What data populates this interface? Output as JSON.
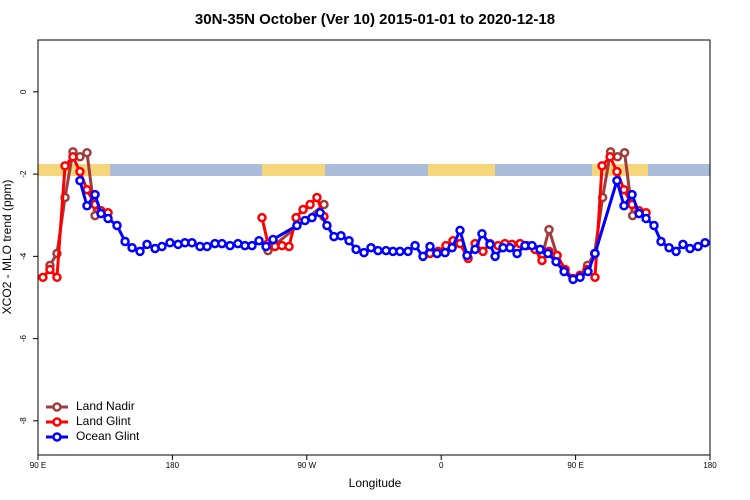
{
  "chart_data": {
    "type": "line",
    "title": "30N-35N October (Ver 10)   2015-01-01 to 2020-12-18",
    "xlabel": "Longitude",
    "ylabel": "XCO2 - MLO trend (ppm)",
    "xlim": [
      90,
      540
    ],
    "ylim": [
      -8.83,
      1.26
    ],
    "xticks": [
      {
        "value": 90,
        "label": "90 E"
      },
      {
        "value": 180,
        "label": "180"
      },
      {
        "value": 270,
        "label": "90 W"
      },
      {
        "value": 360,
        "label": "0"
      },
      {
        "value": 450,
        "label": "90 E"
      },
      {
        "value": 540,
        "label": "180"
      }
    ],
    "yticks": [
      0,
      -2,
      -4,
      -6,
      -8
    ],
    "legend": "bottom-left",
    "series": [
      {
        "name": "Land Nadir",
        "color": "#a03c3c",
        "x": [
          98.0,
          102.7,
          108.1,
          113.4,
          118.1,
          122.8,
          128.2,
          190,
          244.0,
          281.5,
          350,
          427.5,
          432.2,
          437.6,
          445,
          458.0,
          462.7,
          468.1,
          473.4,
          478.1,
          482.8,
          488.2
        ],
        "values": [
          -4.22,
          -3.93,
          -2.57,
          -1.46,
          -1.58,
          -1.48,
          -3.01,
          null,
          -3.86,
          -2.74,
          null,
          -4.0,
          -3.35,
          -3.98,
          null,
          -4.22,
          -3.93,
          -2.57,
          -1.46,
          -1.58,
          -1.48,
          -3.01
        ]
      },
      {
        "name": "Land Glint",
        "color": "#ff0000",
        "x": [
          93.3,
          98.0,
          102.7,
          108.1,
          113.4,
          118.1,
          122.8,
          128.2,
          132.2,
          136.9,
          190,
          240.0,
          244.0,
          248.7,
          253.4,
          258.1,
          262.8,
          267.5,
          272.2,
          276.8,
          281.5,
          320,
          352.5,
          357.9,
          363.2,
          367.9,
          372.6,
          378.0,
          382.7,
          388.0,
          392.7,
          398.1,
          402.7,
          407.4,
          412.8,
          417.5,
          422.8,
          427.5,
          432.2,
          437.6,
          443.0,
          448.3,
          453.0,
          457.6,
          463.0,
          467.7,
          473.1,
          477.7,
          482.4,
          487.8,
          492.5,
          497.2
        ],
        "values": [
          -4.51,
          -4.32,
          -4.51,
          -1.8,
          -1.58,
          -1.94,
          -2.38,
          -2.74,
          -2.89,
          -2.94,
          null,
          -3.06,
          -3.69,
          -3.76,
          -3.74,
          -3.76,
          -3.06,
          -2.86,
          -2.74,
          -2.57,
          -3.03,
          null,
          -3.93,
          -3.88,
          -3.74,
          -3.62,
          -3.69,
          -4.05,
          -3.69,
          -3.88,
          -3.69,
          -3.74,
          -3.69,
          -3.71,
          -3.69,
          -3.74,
          -3.83,
          -4.1,
          -3.88,
          -3.98,
          -4.32,
          -4.54,
          -4.46,
          -4.32,
          -4.51,
          -1.8,
          -1.58,
          -1.94,
          -2.38,
          -2.74,
          -2.89,
          -2.94
        ]
      },
      {
        "name": "Ocean Glint",
        "color": "#0000ff",
        "x": [
          118.1,
          122.8,
          128.2,
          132.2,
          136.9,
          142.9,
          148.3,
          153.0,
          158.3,
          163.0,
          168.4,
          173.0,
          178.4,
          183.8,
          188.4,
          193.1,
          198.5,
          203.2,
          208.5,
          213.2,
          218.6,
          223.9,
          228.6,
          233.3,
          238.0,
          242.7,
          247.4,
          263.4,
          268.8,
          273.5,
          278.9,
          283.5,
          288.2,
          292.9,
          298.3,
          303.0,
          308.3,
          313.0,
          317.7,
          323.1,
          327.7,
          332.4,
          337.8,
          342.5,
          347.8,
          352.5,
          357.2,
          362.6,
          367.3,
          372.6,
          377.3,
          382.7,
          387.3,
          392.7,
          396.1,
          401.4,
          406.1,
          410.8,
          416.1,
          420.8,
          426.2,
          431.5,
          436.9,
          442.3,
          448.3,
          453.0,
          458.3,
          463.0,
          477.7,
          482.4,
          487.8,
          492.5,
          497.2,
          502.5,
          507.2,
          512.6,
          517.3,
          521.9,
          526.6,
          532.0,
          536.7
        ],
        "values": [
          -2.16,
          -2.77,
          -2.5,
          -2.96,
          -3.08,
          -3.25,
          -3.64,
          -3.79,
          -3.88,
          -3.71,
          -3.81,
          -3.76,
          -3.67,
          -3.71,
          -3.67,
          -3.67,
          -3.76,
          -3.76,
          -3.69,
          -3.69,
          -3.74,
          -3.69,
          -3.74,
          -3.74,
          -3.62,
          -3.76,
          -3.59,
          -3.25,
          -3.13,
          -3.06,
          -2.94,
          -3.25,
          -3.52,
          -3.5,
          -3.62,
          -3.83,
          -3.91,
          -3.79,
          -3.86,
          -3.86,
          -3.88,
          -3.88,
          -3.88,
          -3.74,
          -4.0,
          -3.76,
          -3.93,
          -3.91,
          -3.79,
          -3.37,
          -3.98,
          -3.83,
          -3.45,
          -3.71,
          -4.0,
          -3.79,
          -3.79,
          -3.93,
          -3.74,
          -3.74,
          -3.83,
          -3.93,
          -4.13,
          -4.37,
          -4.56,
          -4.51,
          -4.37,
          -3.93,
          -2.16,
          -2.77,
          -2.5,
          -2.96,
          -3.08,
          -3.25,
          -3.64,
          -3.79,
          -3.88,
          -3.71,
          -3.81,
          -3.76,
          -3.67
        ]
      }
    ]
  }
}
